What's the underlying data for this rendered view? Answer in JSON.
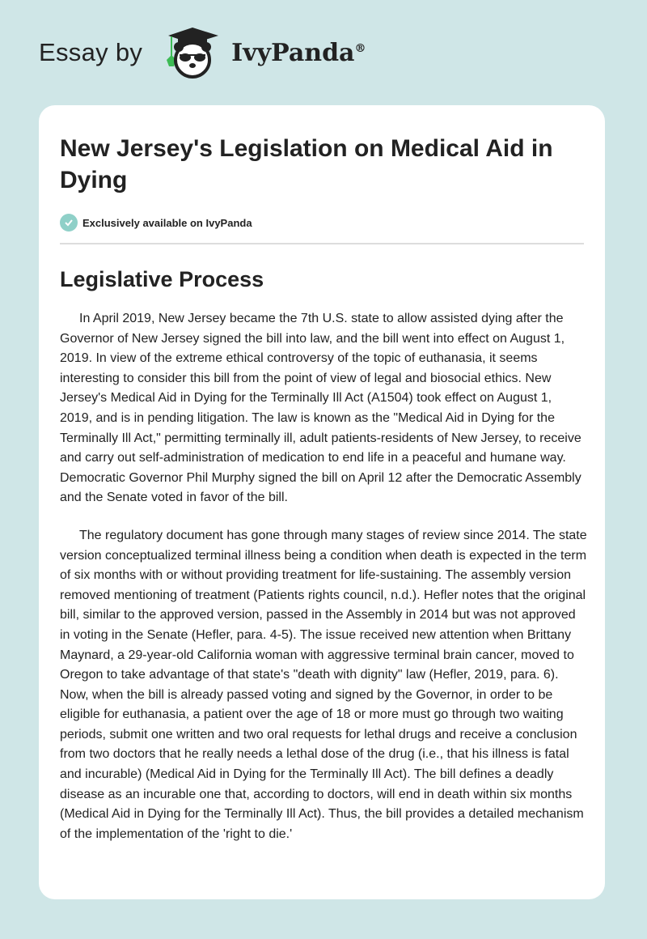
{
  "header": {
    "essay_by": "Essay by",
    "brand": "IvyPanda",
    "registered": "®"
  },
  "article": {
    "title": "New Jersey's Legislation on Medical Aid in Dying",
    "badge": "Exclusively available on IvyPanda",
    "section_heading": "Legislative Process",
    "paragraphs": [
      "In April 2019, New Jersey became the 7th U.S. state to allow assisted dying after the Governor of New Jersey signed the bill into law, and the bill went into effect on August 1, 2019. In view of the extreme ethical controversy of the topic of euthanasia, it seems interesting to consider this bill from the point of view of legal and biosocial ethics. New Jersey's Medical Aid in Dying for the Terminally Ill Act (A1504) took effect on August 1, 2019, and is in pending litigation. The law is known as the \"Medical Aid in Dying for the Terminally Ill Act,\" permitting terminally ill, adult patients-residents of New Jersey, to receive and carry out self-administration of medication to end life in a peaceful and humane way. Democratic Governor Phil Murphy signed the bill on April 12 after the Democratic Assembly and the Senate voted in favor of the bill.",
      "The regulatory document has gone through many stages of review since 2014. The state version conceptualized terminal illness being a condition when death is expected in the term of six months with or without providing treatment for life-sustaining. The assembly version removed mentioning of treatment (Patients rights council, n.d.). Hefler notes that the original bill, similar to the approved version, passed in the Assembly in 2014 but was not approved in voting in the Senate (Hefler, para. 4-5). The issue received new attention when Brittany Maynard, a 29-year-old California woman with aggressive terminal brain cancer, moved to Oregon to take advantage of that state's \"death with dignity\" law (Hefler, 2019, para. 6). Now, when the bill is already passed voting and signed by the Governor, in order to be eligible for euthanasia, a patient over the age of 18 or more must go through two waiting periods, submit one written and two oral requests for lethal drugs and receive a conclusion from two doctors that he really needs a lethal dose of the drug (i.e., that his illness is fatal and incurable) (Medical Aid in Dying for the Terminally Ill Act). The bill defines a deadly disease as an incurable one that, according to doctors, will end in death within six months (Medical Aid in Dying for the Terminally Ill Act). Thus, the bill provides a detailed mechanism of the implementation of the 'right to die.'"
    ]
  },
  "colors": {
    "background": "#cfe6e7",
    "check": "#8fd0c8",
    "leaf": "#3dbb55"
  }
}
